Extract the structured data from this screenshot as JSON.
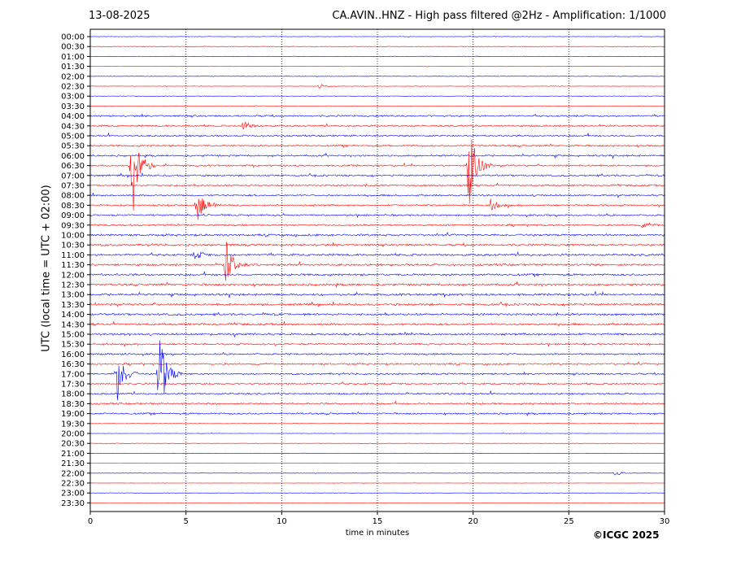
{
  "header": {
    "date": "13-08-2025",
    "title": "CA.AVIN..HNZ - High pass filtered @2Hz - Amplification: 1/1000"
  },
  "footer": {
    "copyright": "©ICGC 2025"
  },
  "chart_data": {
    "type": "line",
    "xlabel": "time in minutes",
    "ylabel": "UTC (local time = UTC + 02:00)",
    "xlim": [
      0,
      30
    ],
    "x_ticks": [
      0,
      5,
      10,
      15,
      20,
      25,
      30
    ],
    "vertical_gridlines": [
      5,
      10,
      15,
      20,
      25
    ],
    "row_labels": [
      "00:00",
      "00:30",
      "01:00",
      "01:30",
      "02:00",
      "02:30",
      "03:00",
      "03:30",
      "04:00",
      "04:30",
      "05:00",
      "05:30",
      "06:00",
      "06:30",
      "07:00",
      "07:30",
      "08:00",
      "08:30",
      "09:00",
      "09:30",
      "10:00",
      "10:30",
      "11:00",
      "11:30",
      "12:00",
      "12:30",
      "13:00",
      "13:30",
      "14:00",
      "14:30",
      "15:00",
      "15:30",
      "16:00",
      "16:30",
      "17:00",
      "17:30",
      "18:00",
      "18:30",
      "19:00",
      "19:30",
      "20:00",
      "20:30",
      "21:00",
      "21:30",
      "22:00",
      "22:30",
      "23:00",
      "23:30"
    ],
    "colors": [
      "#0000ff",
      "#ff0000"
    ],
    "events": [
      {
        "row": "06:30",
        "minute": 2.2,
        "relative_amplitude": 6.0
      },
      {
        "row": "06:30",
        "minute": 19.8,
        "relative_amplitude": 5.5
      },
      {
        "row": "08:30",
        "minute": 5.6,
        "relative_amplitude": 1.7
      },
      {
        "row": "08:30",
        "minute": 20.9,
        "relative_amplitude": 0.6
      },
      {
        "row": "11:30",
        "minute": 7.1,
        "relative_amplitude": 2.5
      },
      {
        "row": "17:00",
        "minute": 1.4,
        "relative_amplitude": 3.0
      },
      {
        "row": "17:00",
        "minute": 3.6,
        "relative_amplitude": 5.0
      },
      {
        "row": "04:30",
        "minute": 8.0,
        "relative_amplitude": 0.5
      },
      {
        "row": "02:30",
        "minute": 12.0,
        "relative_amplitude": 0.25
      },
      {
        "row": "22:00",
        "minute": 27.4,
        "relative_amplitude": 0.3
      },
      {
        "row": "11:00",
        "minute": 5.5,
        "relative_amplitude": 0.5
      },
      {
        "row": "09:30",
        "minute": 28.9,
        "relative_amplitude": 0.3
      }
    ]
  }
}
